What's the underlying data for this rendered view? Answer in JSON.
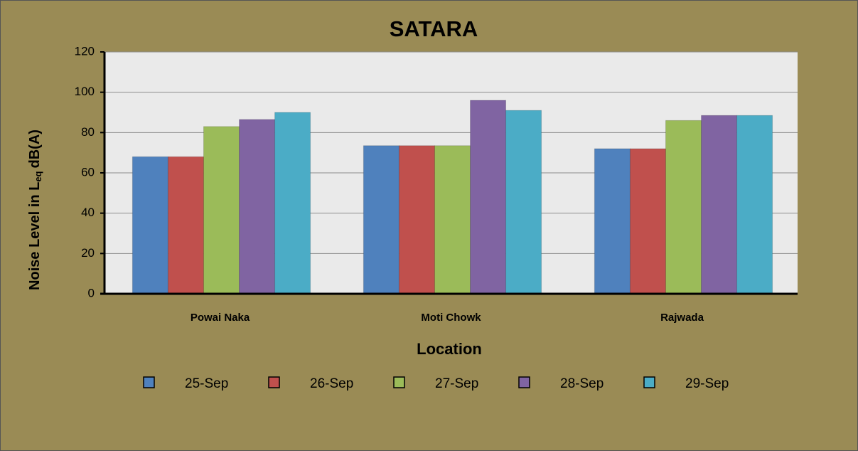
{
  "chart_data": {
    "type": "bar",
    "title": "SATARA",
    "x_label": "Location",
    "y_label": [
      "Noise Level in L",
      "eq",
      "dB(A)"
    ],
    "categories": [
      "Powai Naka",
      "Moti Chowk",
      "Rajwada"
    ],
    "series": [
      {
        "name": "25-Sep",
        "color": "#4f81bd",
        "values": [
          68,
          73.5,
          72
        ]
      },
      {
        "name": "26-Sep",
        "color": "#c0504d",
        "values": [
          68,
          73.5,
          72
        ]
      },
      {
        "name": "27-Sep",
        "color": "#9bbb59",
        "values": [
          83,
          73.5,
          86
        ]
      },
      {
        "name": "28-Sep",
        "color": "#8064a2",
        "values": [
          86.5,
          96,
          88.5
        ]
      },
      {
        "name": "29-Sep",
        "color": "#4bacc6",
        "values": [
          90,
          91,
          88.5
        ]
      }
    ],
    "ylim": [
      0,
      120
    ],
    "yticks": [
      0,
      20,
      40,
      60,
      80,
      100,
      120
    ],
    "grid": true,
    "legend": "bottom"
  }
}
